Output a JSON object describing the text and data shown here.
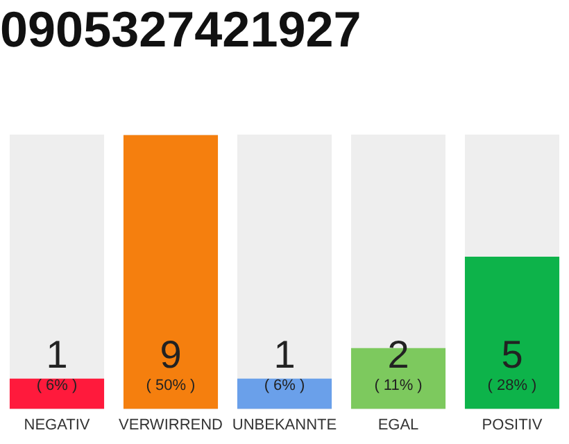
{
  "chart_data": {
    "type": "bar",
    "title": "0905327421927",
    "categories": [
      "NEGATIV",
      "VERWIRREND",
      "UNBEKANNTE",
      "EGAL",
      "POSITIV"
    ],
    "values": [
      1,
      9,
      1,
      2,
      5
    ],
    "colors": [
      "#ff1a3c",
      "#f57f0e",
      "#6aa0ea",
      "#7dc95e",
      "#0db34a"
    ],
    "data_labels": true,
    "annotations": [
      "( 6% )",
      "( 50% )",
      "( 6% )",
      "( 11% )",
      "( 28% )"
    ],
    "grid": false,
    "legend": false
  }
}
